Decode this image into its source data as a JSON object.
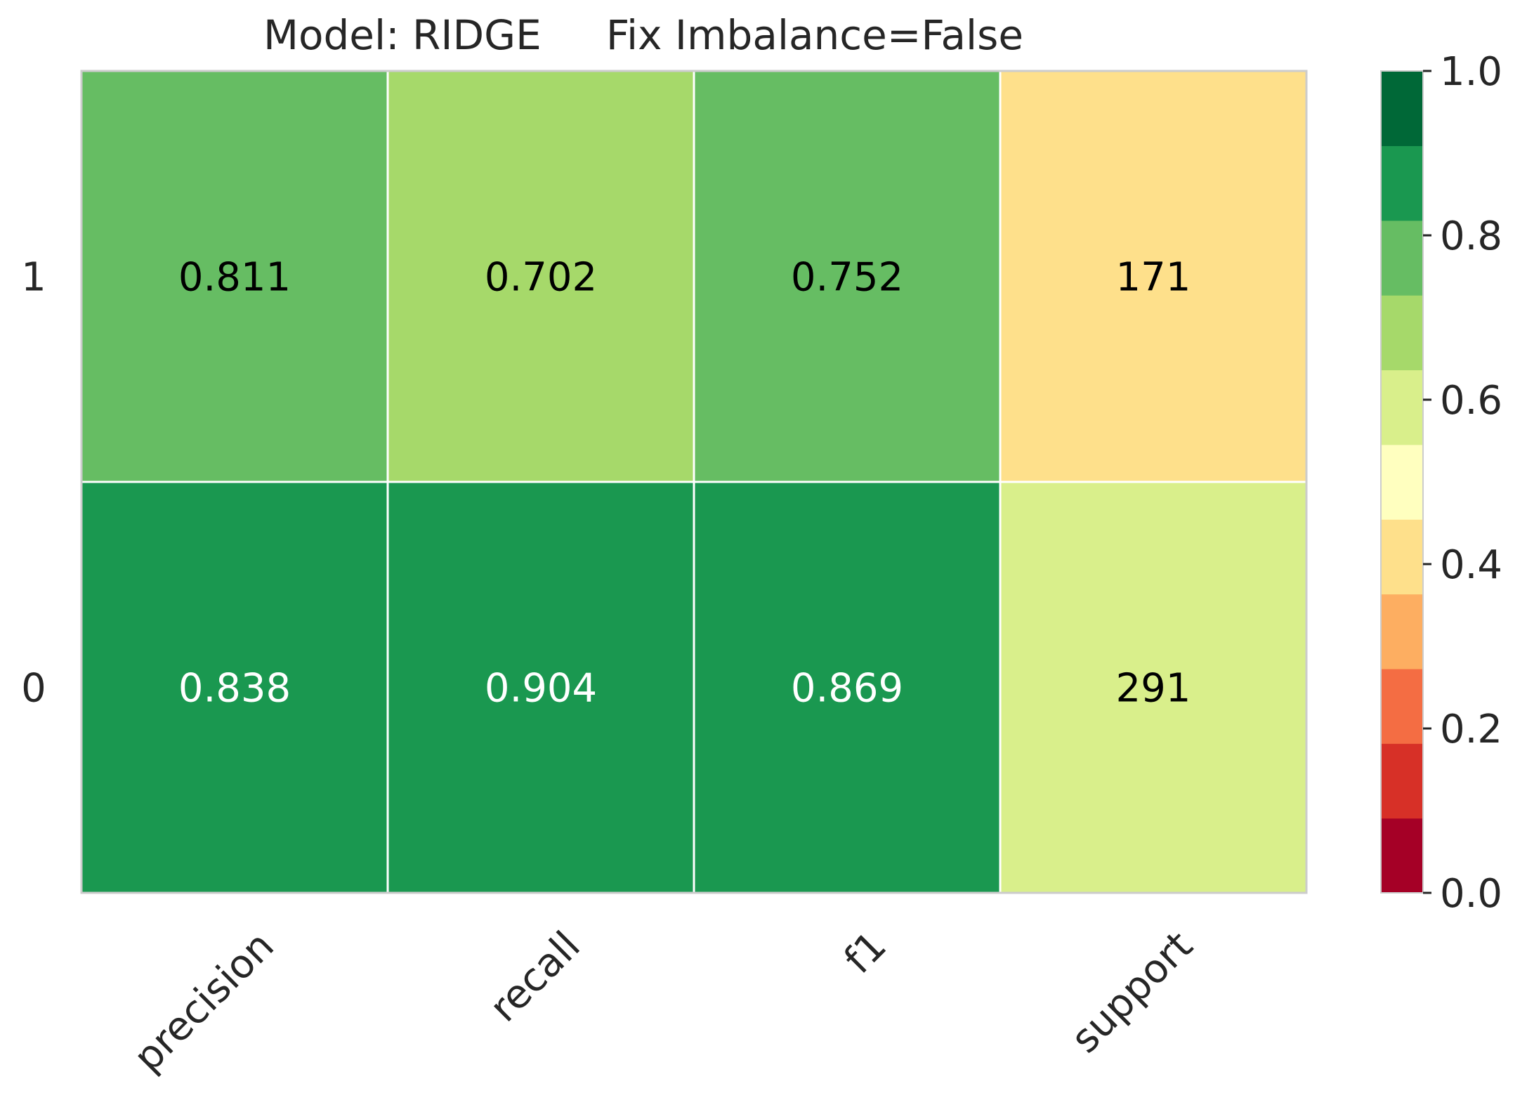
{
  "chart_data": {
    "type": "heatmap",
    "title": "Model: RIDGE     Fix Imbalance=False",
    "x_categories": [
      "precision",
      "recall",
      "f1",
      "support"
    ],
    "y_categories": [
      "1",
      "0"
    ],
    "cells": [
      {
        "row": "1",
        "col": "precision",
        "label": "0.811",
        "color_value": 0.811
      },
      {
        "row": "1",
        "col": "recall",
        "label": "0.702",
        "color_value": 0.702
      },
      {
        "row": "1",
        "col": "f1",
        "label": "0.752",
        "color_value": 0.752
      },
      {
        "row": "1",
        "col": "support",
        "label": "171",
        "color_value": 0.37
      },
      {
        "row": "0",
        "col": "precision",
        "label": "0.838",
        "color_value": 0.838
      },
      {
        "row": "0",
        "col": "recall",
        "label": "0.904",
        "color_value": 0.904
      },
      {
        "row": "0",
        "col": "f1",
        "label": "0.869",
        "color_value": 0.869
      },
      {
        "row": "0",
        "col": "support",
        "label": "291",
        "color_value": 0.63
      }
    ],
    "colorbar": {
      "range": [
        0.0,
        1.0
      ],
      "ticks": [
        "0.0",
        "0.2",
        "0.4",
        "0.6",
        "0.8",
        "1.0"
      ],
      "colors": [
        "#a50026",
        "#d73027",
        "#f46d43",
        "#fdae61",
        "#fee08b",
        "#ffffbf",
        "#d9ef8b",
        "#a6d96a",
        "#66bd63",
        "#1a9850",
        "#006837"
      ]
    },
    "grid": true,
    "legend": "right"
  }
}
